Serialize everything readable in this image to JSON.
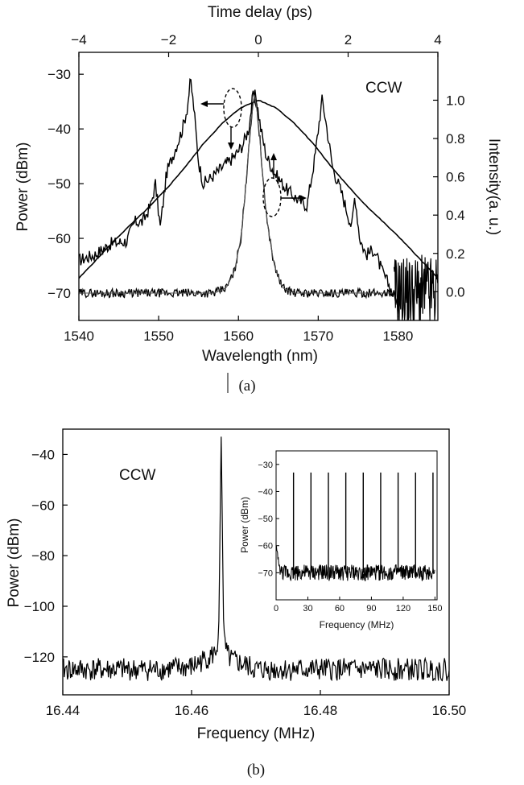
{
  "chart_data": [
    {
      "type": "line",
      "panel": "(a)",
      "annotation": "CCW",
      "xlabel": "Wavelength (nm)",
      "ylabel": "Power (dBm)",
      "x2label": "Time delay (ps)",
      "y2label": "Intensity(a. u.)",
      "xlim": [
        1540,
        1585
      ],
      "ylim": [
        -75,
        -26
      ],
      "x2lim": [
        -4,
        4
      ],
      "y2lim": [
        -0.15,
        1.25
      ],
      "xticks": [
        1540,
        1550,
        1560,
        1570,
        1580
      ],
      "yticks": [
        -70,
        -60,
        -50,
        -40,
        -30
      ],
      "x2ticks": [
        -4,
        -2,
        0,
        2,
        4
      ],
      "y2ticks": [
        0.0,
        0.2,
        0.4,
        0.6,
        0.8,
        1.0
      ],
      "series": [
        {
          "axis": "primary",
          "x": [
            1540,
            1542,
            1544,
            1546,
            1547,
            1548,
            1549,
            1549.6,
            1550.2,
            1551,
            1552,
            1553,
            1553.6,
            1554,
            1554.4,
            1555,
            1555.6,
            1556.5,
            1558,
            1559.5,
            1560.5,
            1561.3,
            1561.8,
            1562.2,
            1562.8,
            1563.5,
            1564.5,
            1566,
            1567.5,
            1568.6,
            1569.6,
            1570.1,
            1570.5,
            1571,
            1571.8,
            1573,
            1574.2,
            1574.6,
            1575.2,
            1576,
            1577,
            1578,
            1579,
            1580
          ],
          "y": [
            -64,
            -63,
            -61,
            -60.5,
            -57,
            -57,
            -54,
            -50,
            -58,
            -48,
            -44,
            -40,
            -36,
            -31,
            -36,
            -46,
            -50,
            -49,
            -47,
            -45,
            -43,
            -40,
            -34,
            -34,
            -40,
            -45,
            -48,
            -51,
            -53,
            -54,
            -45,
            -39,
            -34.5,
            -39,
            -47,
            -52,
            -58,
            -52,
            -60,
            -63,
            -62,
            -66,
            -69,
            -72
          ]
        },
        {
          "axis": "primary",
          "x": [
            1540,
            1545,
            1550,
            1555,
            1557,
            1558.5,
            1559.5,
            1560.3,
            1560.9,
            1561.3,
            1561.7,
            1562.0,
            1562.3,
            1562.7,
            1563.1,
            1563.7,
            1564.5,
            1565.5,
            1567,
            1570,
            1575,
            1579.5
          ],
          "y": [
            -70,
            -70,
            -70,
            -70,
            -70,
            -69,
            -66,
            -60,
            -51,
            -43,
            -37,
            -34,
            -36,
            -42,
            -50,
            -58,
            -65,
            -69,
            -70,
            -70,
            -70,
            -70
          ]
        },
        {
          "axis": "secondary",
          "x": [
            -4,
            -3.6,
            -3.2,
            -2.8,
            -2.4,
            -2.0,
            -1.6,
            -1.2,
            -0.8,
            -0.4,
            0,
            0.4,
            0.8,
            1.2,
            1.6,
            2.0,
            2.4,
            2.8,
            3.2,
            3.6,
            4
          ],
          "y": [
            0.07,
            0.17,
            0.27,
            0.36,
            0.45,
            0.55,
            0.66,
            0.78,
            0.88,
            0.96,
            1.0,
            0.96,
            0.88,
            0.78,
            0.66,
            0.55,
            0.45,
            0.36,
            0.27,
            0.17,
            0.07
          ]
        }
      ]
    },
    {
      "type": "line",
      "panel": "(b)",
      "annotation": "CCW",
      "xlabel": "Frequency (MHz)",
      "ylabel": "Power (dBm)",
      "xlim": [
        16.44,
        16.5
      ],
      "ylim": [
        -135,
        -30
      ],
      "xticks": [
        16.44,
        16.46,
        16.48,
        16.5
      ],
      "yticks": [
        -120,
        -100,
        -80,
        -60,
        -40
      ],
      "series": [
        {
          "x": [
            16.44,
            16.45,
            16.455,
            16.46,
            16.462,
            16.4635,
            16.4642,
            16.4646,
            16.465,
            16.4655,
            16.466,
            16.468,
            16.47,
            16.48,
            16.49,
            16.5
          ],
          "y": [
            -125,
            -125,
            -125,
            -124,
            -121,
            -119,
            -114,
            -33,
            -113,
            -119,
            -121,
            -123,
            -125,
            -125,
            -125,
            -125
          ]
        }
      ],
      "inset": {
        "xlabel": "Frequency (MHz)",
        "ylabel": "Power (dBm)",
        "xlim": [
          0,
          152
        ],
        "ylim": [
          -80,
          -25
        ],
        "xticks": [
          0,
          30,
          60,
          90,
          120,
          150
        ],
        "yticks": [
          -70,
          -60,
          -50,
          -40,
          -30
        ],
        "peak_frequencies": [
          16.46,
          32.92,
          49.38,
          65.84,
          82.3,
          98.76,
          115.22,
          131.68,
          148.14
        ],
        "peak_level": -33,
        "noise_floor": -70
      }
    }
  ]
}
